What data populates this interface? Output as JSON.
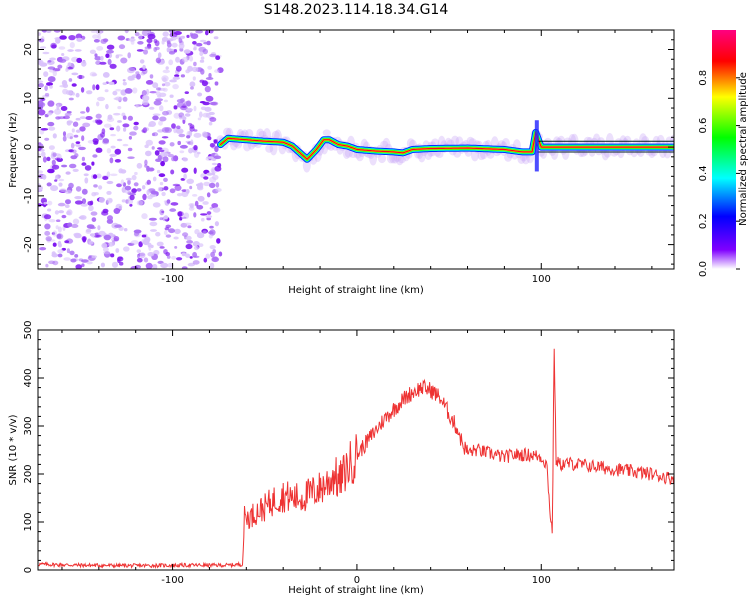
{
  "figure": {
    "title": "S148.2023.114.18.34.G14"
  },
  "chart_data": [
    {
      "type": "heatmap",
      "title": "",
      "xlabel": "Height of straight line (km)",
      "ylabel": "Frequency (Hz)",
      "xlim": [
        -173,
        172
      ],
      "ylim": [
        -25,
        24
      ],
      "xticks": [
        -100,
        100
      ],
      "yticks": [
        -20,
        -10,
        0,
        10,
        20
      ],
      "grid": false,
      "colorbar": {
        "label": "Normalized spectral amplitude",
        "range": [
          0,
          1
        ],
        "ticks": [
          0.0,
          0.2,
          0.4,
          0.6,
          0.8
        ],
        "colormap": [
          "#ffffff",
          "#8000ff",
          "#0000ff",
          "#00ffff",
          "#00ff00",
          "#ffff00",
          "#ff0000",
          "#ff0080"
        ]
      },
      "noise_region": {
        "x_range": [
          -173,
          -74
        ],
        "amplitude": [
          0.0,
          0.25
        ]
      },
      "ridge": {
        "x": [
          -74,
          -70,
          -60,
          -50,
          -40,
          -35,
          -30,
          -27,
          -22,
          -18,
          -15,
          -10,
          -5,
          0,
          10,
          20,
          25,
          30,
          40,
          60,
          80,
          90,
          95,
          97,
          100,
          120,
          140,
          160,
          172
        ],
        "y": [
          0.5,
          1.8,
          1.5,
          1.2,
          1.0,
          0.2,
          -1.5,
          -2.5,
          -0.5,
          1.5,
          1.5,
          0.5,
          0.2,
          -0.5,
          -0.8,
          -1.0,
          -1.2,
          -0.5,
          -0.3,
          -0.2,
          -0.5,
          -1.0,
          -1.0,
          3.0,
          0.0,
          0.0,
          0.0,
          0.0,
          0.0
        ],
        "amplitude": [
          0.5,
          0.85,
          0.8,
          0.8,
          0.75,
          0.7,
          0.6,
          0.6,
          0.7,
          0.75,
          0.75,
          0.6,
          0.6,
          0.65,
          0.7,
          0.75,
          0.8,
          0.8,
          0.85,
          0.85,
          0.8,
          0.75,
          0.7,
          0.5,
          0.9,
          0.9,
          0.9,
          0.85,
          0.8
        ]
      }
    },
    {
      "type": "line",
      "title": "",
      "xlabel": "Height of straight line (km)",
      "ylabel": "SNR (10 * v/v)",
      "xlim": [
        -173,
        172
      ],
      "ylim": [
        0,
        500
      ],
      "xticks": [
        -100,
        0,
        100
      ],
      "yticks": [
        0,
        100,
        200,
        300,
        400,
        500
      ],
      "grid": false,
      "series": [
        {
          "color": "#ee3333",
          "x": [
            -173,
            -150,
            -120,
            -90,
            -70,
            -62,
            -61,
            -58,
            -55,
            -50,
            -45,
            -40,
            -35,
            -30,
            -25,
            -20,
            -15,
            -12,
            -10,
            -5,
            0,
            5,
            10,
            15,
            20,
            25,
            30,
            35,
            40,
            45,
            50,
            55,
            57,
            60,
            65,
            70,
            75,
            80,
            85,
            90,
            95,
            100,
            103,
            105,
            106,
            107,
            108,
            110,
            115,
            120,
            130,
            140,
            150,
            160,
            172
          ],
          "y": [
            12,
            10,
            9,
            10,
            10,
            12,
            110,
            110,
            120,
            130,
            145,
            155,
            150,
            150,
            160,
            170,
            185,
            200,
            180,
            215,
            240,
            265,
            290,
            315,
            335,
            355,
            370,
            380,
            375,
            360,
            325,
            290,
            265,
            245,
            250,
            245,
            240,
            235,
            240,
            240,
            240,
            235,
            220,
            110,
            80,
            470,
            230,
            220,
            222,
            220,
            215,
            210,
            205,
            200,
            190
          ]
        }
      ]
    }
  ]
}
